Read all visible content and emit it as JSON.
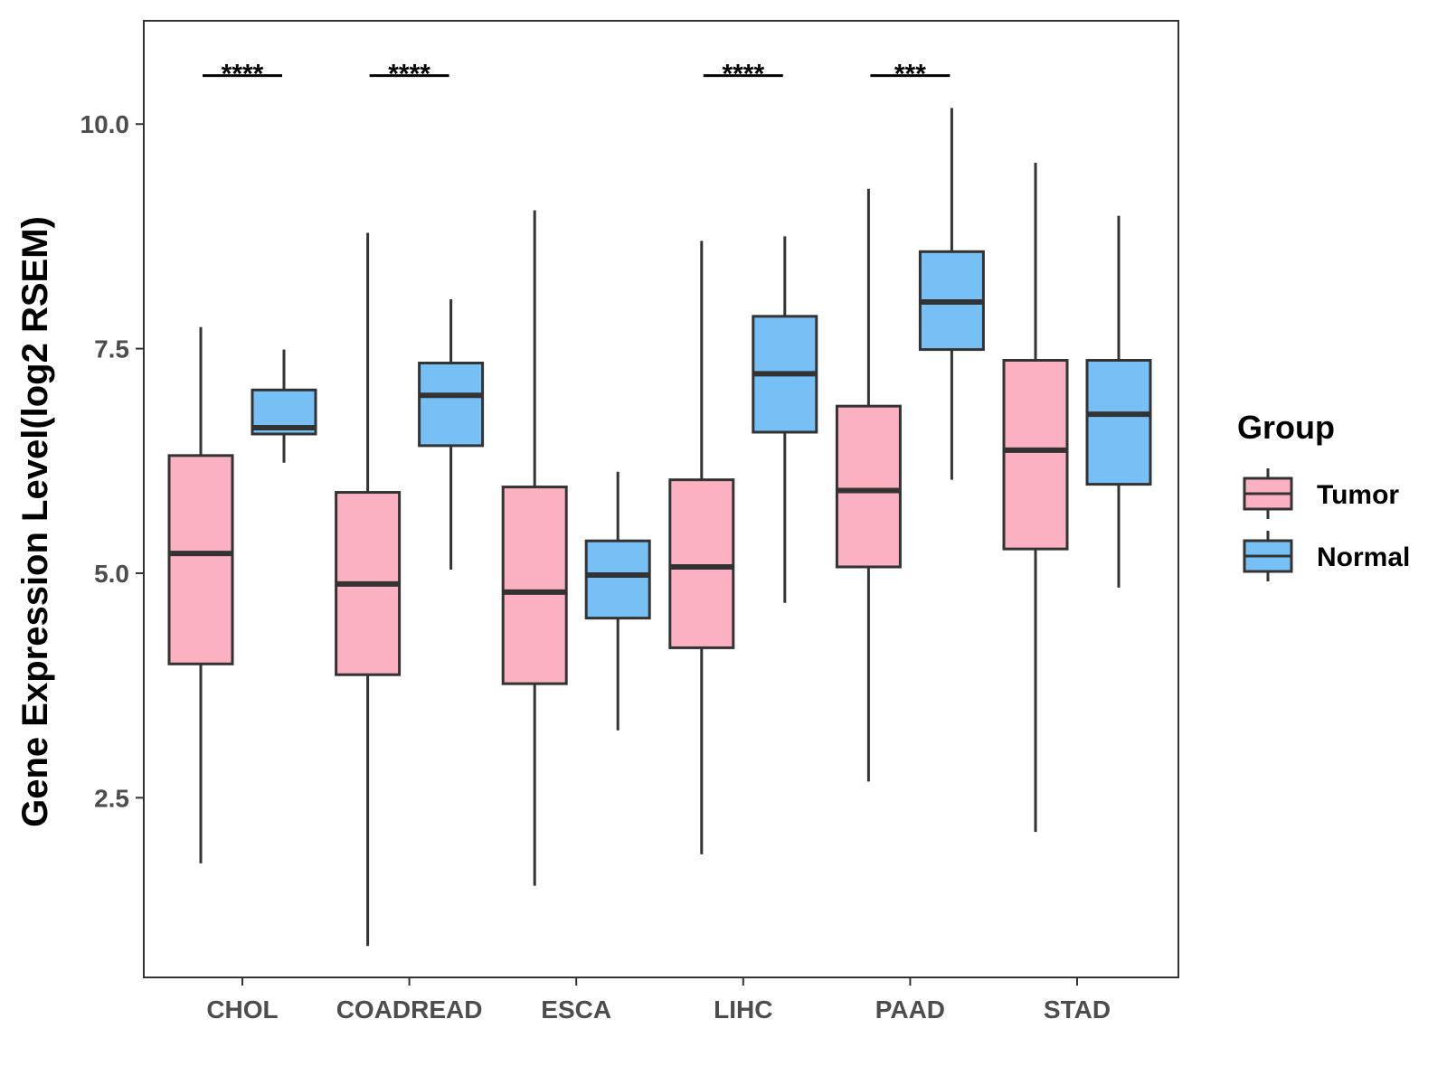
{
  "chart_data": {
    "type": "box",
    "title": "",
    "xlabel": "",
    "ylabel": "Gene Expression Level(log2 RSEM)",
    "ylim": [
      0.5,
      11.15
    ],
    "yticks": [
      2.5,
      5.0,
      7.5,
      10.0
    ],
    "ytick_labels": [
      "2.5",
      "5.0",
      "7.5",
      "10.0"
    ],
    "categories": [
      "CHOL",
      "COADREAD",
      "ESCA",
      "LIHC",
      "PAAD",
      "STAD"
    ],
    "legend": {
      "title": "Group",
      "position": "right"
    },
    "series": [
      {
        "name": "Tumor",
        "color": "#fbb1c1",
        "boxes": [
          {
            "min": 1.77,
            "q1": 3.99,
            "median": 5.22,
            "q3": 6.31,
            "max": 7.74
          },
          {
            "min": 0.85,
            "q1": 3.87,
            "median": 4.88,
            "q3": 5.9,
            "max": 8.79
          },
          {
            "min": 1.52,
            "q1": 3.77,
            "median": 4.79,
            "q3": 5.96,
            "max": 9.04
          },
          {
            "min": 1.87,
            "q1": 4.17,
            "median": 5.07,
            "q3": 6.04,
            "max": 8.7
          },
          {
            "min": 2.68,
            "q1": 5.07,
            "median": 5.92,
            "q3": 6.86,
            "max": 9.28
          },
          {
            "min": 2.12,
            "q1": 5.27,
            "median": 6.37,
            "q3": 7.37,
            "max": 9.57
          }
        ]
      },
      {
        "name": "Normal",
        "color": "#77c0f6",
        "boxes": [
          {
            "min": 6.23,
            "q1": 6.55,
            "median": 6.62,
            "q3": 7.04,
            "max": 7.49
          },
          {
            "min": 5.04,
            "q1": 6.42,
            "median": 6.98,
            "q3": 7.34,
            "max": 8.05
          },
          {
            "min": 3.25,
            "q1": 4.5,
            "median": 4.98,
            "q3": 5.36,
            "max": 6.13
          },
          {
            "min": 4.67,
            "q1": 6.57,
            "median": 7.22,
            "q3": 7.86,
            "max": 8.75
          },
          {
            "min": 6.04,
            "q1": 7.49,
            "median": 8.02,
            "q3": 8.58,
            "max": 10.18
          },
          {
            "min": 4.84,
            "q1": 5.99,
            "median": 6.77,
            "q3": 7.37,
            "max": 8.98
          }
        ]
      }
    ],
    "significance": [
      {
        "category": "CHOL",
        "label": "****",
        "y": 10.54
      },
      {
        "category": "COADREAD",
        "label": "****",
        "y": 10.54
      },
      {
        "category": "LIHC",
        "label": "****",
        "y": 10.54
      },
      {
        "category": "PAAD",
        "label": "***",
        "y": 10.54
      }
    ]
  }
}
